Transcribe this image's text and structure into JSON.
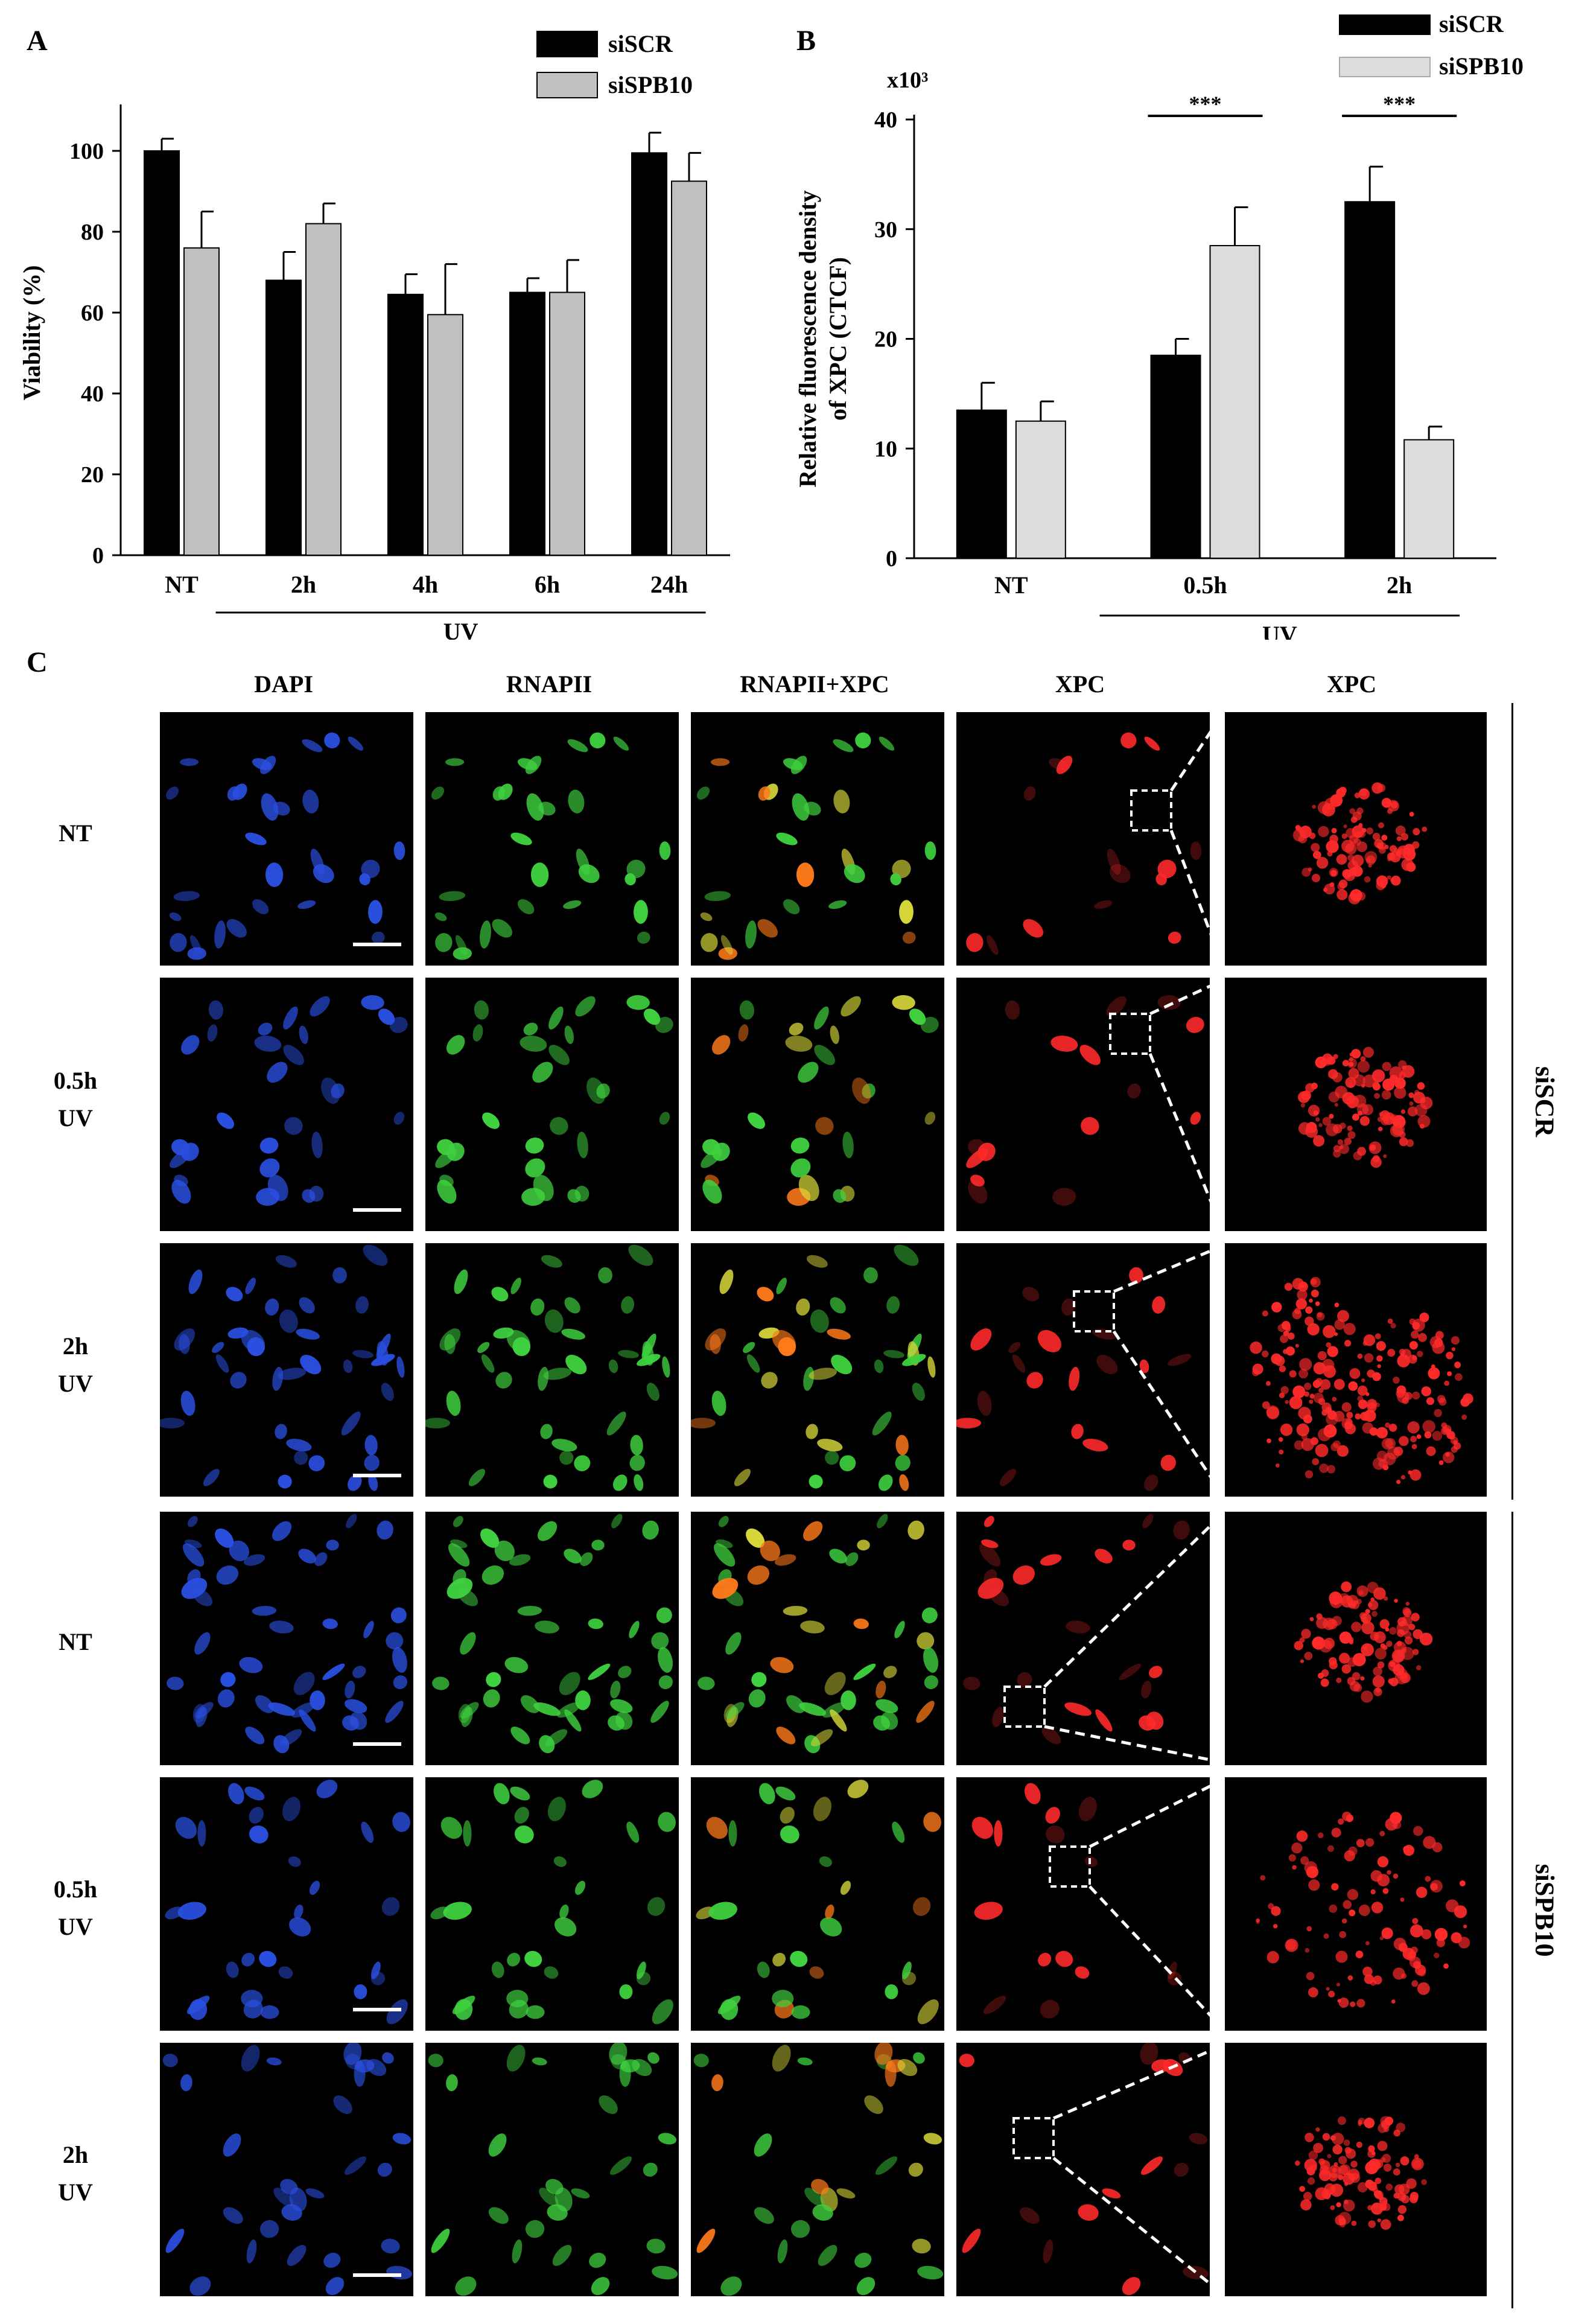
{
  "panels": {
    "a": "A",
    "b": "B",
    "c": "C"
  },
  "chart_data": [
    {
      "type": "bar",
      "ylabel": "Viability (%)",
      "xlabel": "",
      "ylim": [
        0,
        110
      ],
      "yticks": [
        0,
        20,
        40,
        60,
        80,
        100
      ],
      "categories": [
        "NT",
        "2h",
        "4h",
        "6h",
        "24h"
      ],
      "group_label": "UV",
      "legend_position": "top-right",
      "series": [
        {
          "name": "siSCR",
          "color": "#000000",
          "values": [
            100,
            68,
            64.5,
            65,
            99.5
          ],
          "errors": [
            3,
            7,
            5,
            3.5,
            5
          ]
        },
        {
          "name": "siSPB10",
          "color": "#c0c0c0",
          "values": [
            76,
            82,
            59.5,
            65,
            92.5
          ],
          "errors": [
            9,
            5,
            12.5,
            8,
            7
          ]
        }
      ]
    },
    {
      "type": "bar",
      "ylabel": "Relative fluorescence density of XPC (CTCF)",
      "ylabel_lines": [
        "Relative fluorescence density",
        "of XPC (CTCF)"
      ],
      "scale_label": "x10³",
      "ylim": [
        0,
        40
      ],
      "yticks": [
        0,
        10,
        20,
        30,
        40
      ],
      "categories": [
        "NT",
        "0.5h",
        "2h"
      ],
      "group_label": "UV",
      "legend_position": "top-right",
      "significance": [
        "***",
        "***"
      ],
      "series": [
        {
          "name": "siSCR",
          "color": "#000000",
          "values": [
            13.5,
            18.5,
            32.5
          ],
          "errors": [
            2.5,
            1.5,
            3.2
          ]
        },
        {
          "name": "siSPB10",
          "color": "#dcdcdc",
          "values": [
            12.5,
            28.5,
            10.8
          ],
          "errors": [
            1.8,
            3.5,
            1.2
          ]
        }
      ]
    }
  ],
  "microscopy": {
    "columns": [
      "DAPI",
      "RNAPII",
      "RNAPII+XPC",
      "XPC",
      "XPC"
    ],
    "rows": [
      {
        "label_1": "NT",
        "label_2": ""
      },
      {
        "label_1": "0.5h",
        "label_2": "UV"
      },
      {
        "label_1": "2h",
        "label_2": "UV"
      },
      {
        "label_1": "NT",
        "label_2": ""
      },
      {
        "label_1": "0.5h",
        "label_2": "UV"
      },
      {
        "label_1": "2h",
        "label_2": "UV"
      }
    ],
    "groups": [
      "siSCR",
      "siSPB10"
    ],
    "channel_colors": {
      "dapi": "#2a4fe0",
      "rnapii": "#3fd13f",
      "merge": "#c9d23a",
      "xpc": "#ff2a2a"
    }
  }
}
